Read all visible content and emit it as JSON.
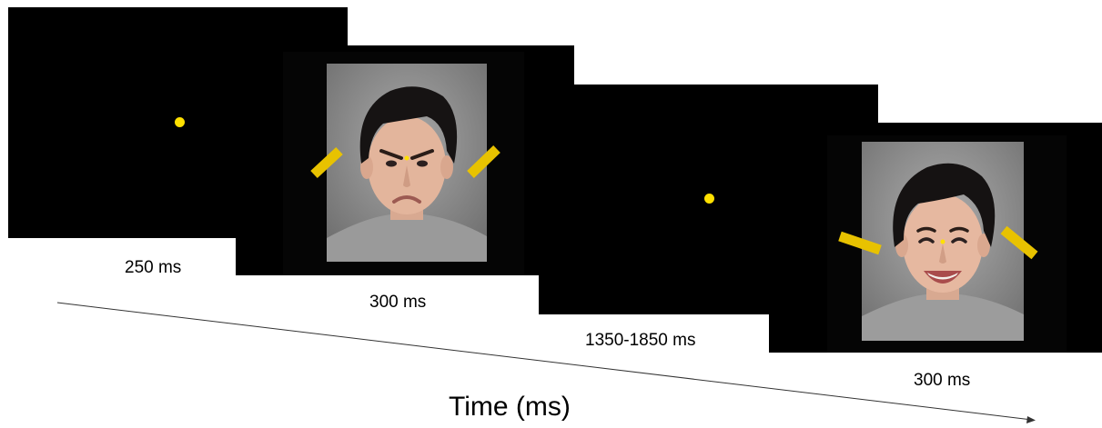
{
  "durations": {
    "screen1": "250 ms",
    "screen2": "300 ms",
    "screen3": "1350-1850 ms",
    "screen4": "300 ms"
  },
  "time_axis": {
    "label": "Time (ms)"
  },
  "colors": {
    "screen_background": "#000000",
    "fixation_dot": "#ffe000",
    "cue_bar": "#e8c200",
    "photo_backdrop": "#8c8c8c",
    "axis_line": "#333333"
  },
  "faces": {
    "screen2_expression": "angry",
    "screen4_expression": "happy"
  }
}
